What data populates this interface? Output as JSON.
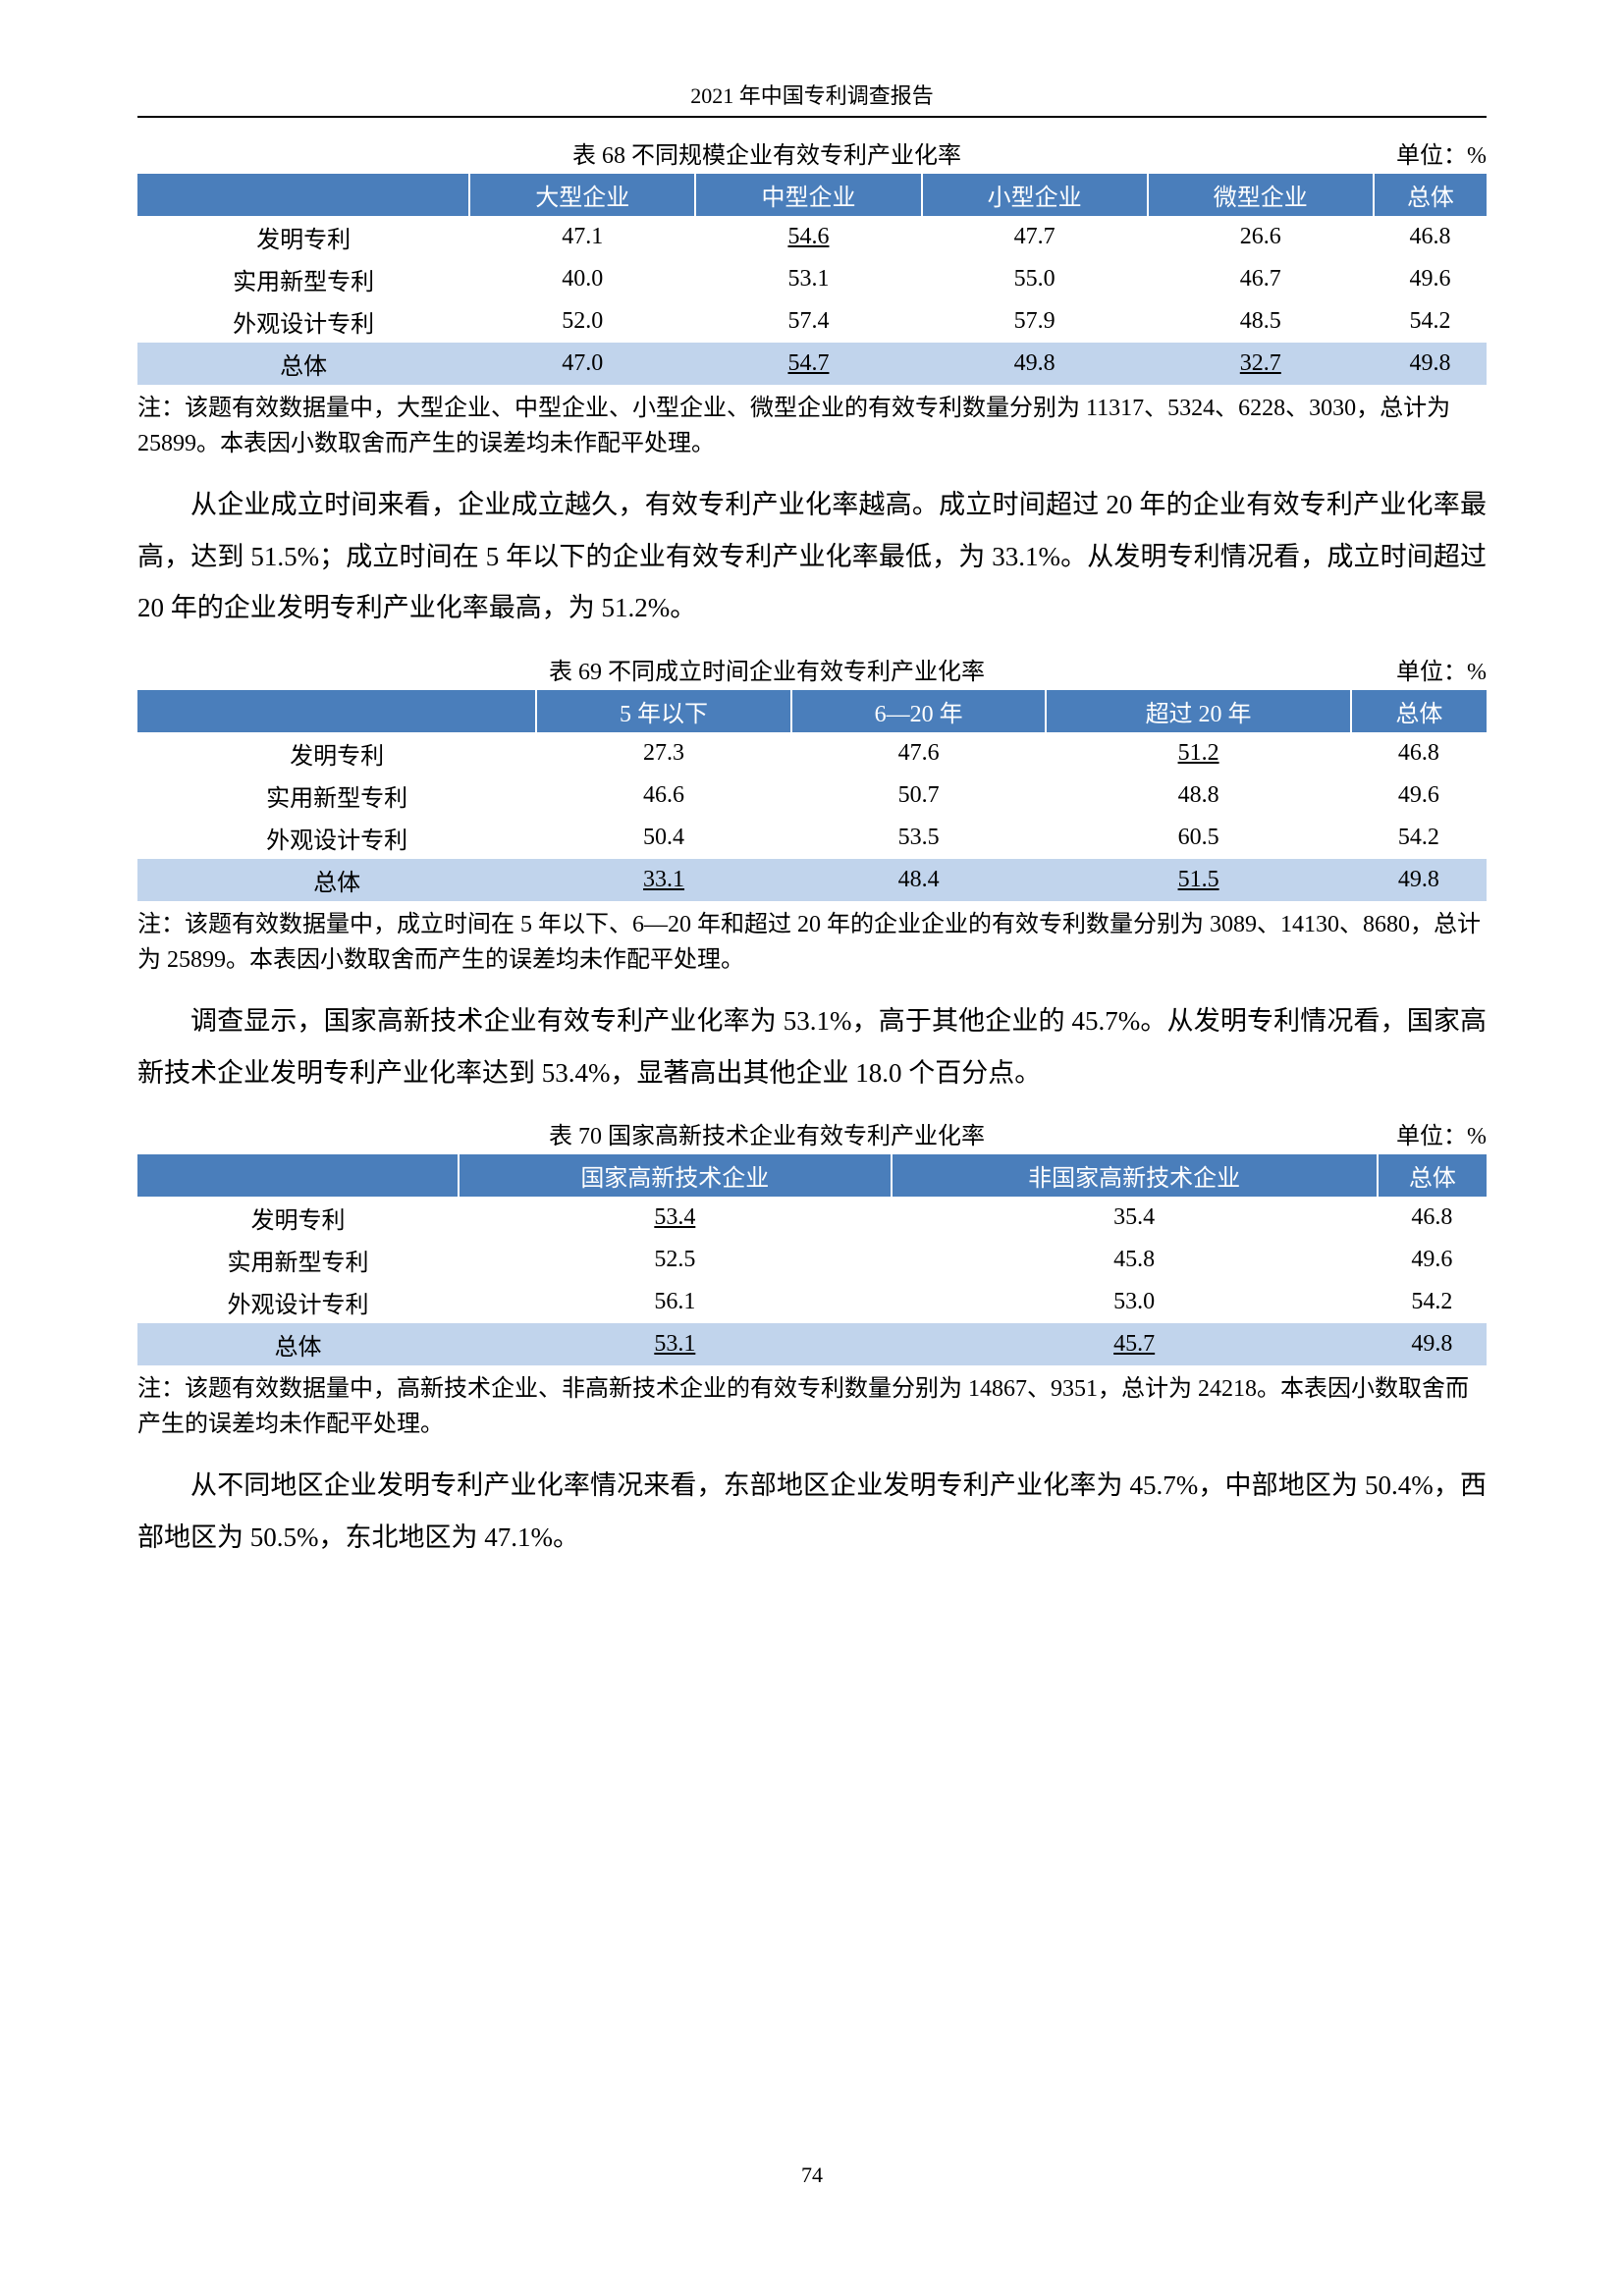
{
  "header": "2021 年中国专利调查报告",
  "pageNumber": "74",
  "table68": {
    "title": "表 68  不同规模企业有效专利产业化率",
    "unit": "单位：%",
    "columns": [
      "大型企业",
      "中型企业",
      "小型企业",
      "微型企业",
      "总体"
    ],
    "rows": [
      {
        "label": "发明专利",
        "cells": [
          "47.1",
          "54.6",
          "47.7",
          "26.6",
          "46.8"
        ],
        "ul": [
          false,
          true,
          false,
          false,
          false
        ]
      },
      {
        "label": "实用新型专利",
        "cells": [
          "40.0",
          "53.1",
          "55.0",
          "46.7",
          "49.6"
        ],
        "ul": [
          false,
          false,
          false,
          false,
          false
        ]
      },
      {
        "label": "外观设计专利",
        "cells": [
          "52.0",
          "57.4",
          "57.9",
          "48.5",
          "54.2"
        ],
        "ul": [
          false,
          false,
          false,
          false,
          false
        ]
      }
    ],
    "total": {
      "label": "总体",
      "cells": [
        "47.0",
        "54.7",
        "49.8",
        "32.7",
        "49.8"
      ],
      "ul": [
        false,
        true,
        false,
        true,
        false
      ]
    },
    "note": "注：该题有效数据量中，大型企业、中型企业、小型企业、微型企业的有效专利数量分别为 11317、5324、6228、3030，总计为 25899。本表因小数取舍而产生的误差均未作配平处理。"
  },
  "para1": "从企业成立时间来看，企业成立越久，有效专利产业化率越高。成立时间超过 20 年的企业有效专利产业化率最高，达到 51.5%；成立时间在 5 年以下的企业有效专利产业化率最低，为 33.1%。从发明专利情况看，成立时间超过 20 年的企业发明专利产业化率最高，为 51.2%。",
  "table69": {
    "title": "表 69  不同成立时间企业有效专利产业化率",
    "unit": "单位：%",
    "columns": [
      "5 年以下",
      "6—20 年",
      "超过 20 年",
      "总体"
    ],
    "rows": [
      {
        "label": "发明专利",
        "cells": [
          "27.3",
          "47.6",
          "51.2",
          "46.8"
        ],
        "ul": [
          false,
          false,
          true,
          false
        ]
      },
      {
        "label": "实用新型专利",
        "cells": [
          "46.6",
          "50.7",
          "48.8",
          "49.6"
        ],
        "ul": [
          false,
          false,
          false,
          false
        ]
      },
      {
        "label": "外观设计专利",
        "cells": [
          "50.4",
          "53.5",
          "60.5",
          "54.2"
        ],
        "ul": [
          false,
          false,
          false,
          false
        ]
      }
    ],
    "total": {
      "label": "总体",
      "cells": [
        "33.1",
        "48.4",
        "51.5",
        "49.8"
      ],
      "ul": [
        true,
        false,
        true,
        false
      ]
    },
    "note": "注：该题有效数据量中，成立时间在 5 年以下、6—20 年和超过 20 年的企业企业的有效专利数量分别为 3089、14130、8680，总计为 25899。本表因小数取舍而产生的误差均未作配平处理。"
  },
  "para2": "调查显示，国家高新技术企业有效专利产业化率为 53.1%，高于其他企业的 45.7%。从发明专利情况看，国家高新技术企业发明专利产业化率达到 53.4%，显著高出其他企业 18.0 个百分点。",
  "table70": {
    "title": "表 70  国家高新技术企业有效专利产业化率",
    "unit": "单位：%",
    "columns": [
      "国家高新技术企业",
      "非国家高新技术企业",
      "总体"
    ],
    "rows": [
      {
        "label": "发明专利",
        "cells": [
          "53.4",
          "35.4",
          "46.8"
        ],
        "ul": [
          true,
          false,
          false
        ]
      },
      {
        "label": "实用新型专利",
        "cells": [
          "52.5",
          "45.8",
          "49.6"
        ],
        "ul": [
          false,
          false,
          false
        ]
      },
      {
        "label": "外观设计专利",
        "cells": [
          "56.1",
          "53.0",
          "54.2"
        ],
        "ul": [
          false,
          false,
          false
        ]
      }
    ],
    "total": {
      "label": "总体",
      "cells": [
        "53.1",
        "45.7",
        "49.8"
      ],
      "ul": [
        true,
        true,
        false
      ]
    },
    "note": "注：该题有效数据量中，高新技术企业、非高新技术企业的有效专利数量分别为 14867、9351，总计为 24218。本表因小数取舍而产生的误差均未作配平处理。"
  },
  "para3": "从不同地区企业发明专利产业化率情况来看，东部地区企业发明专利产业化率为 45.7%，中部地区为 50.4%，西部地区为 50.5%，东北地区为 47.1%。"
}
